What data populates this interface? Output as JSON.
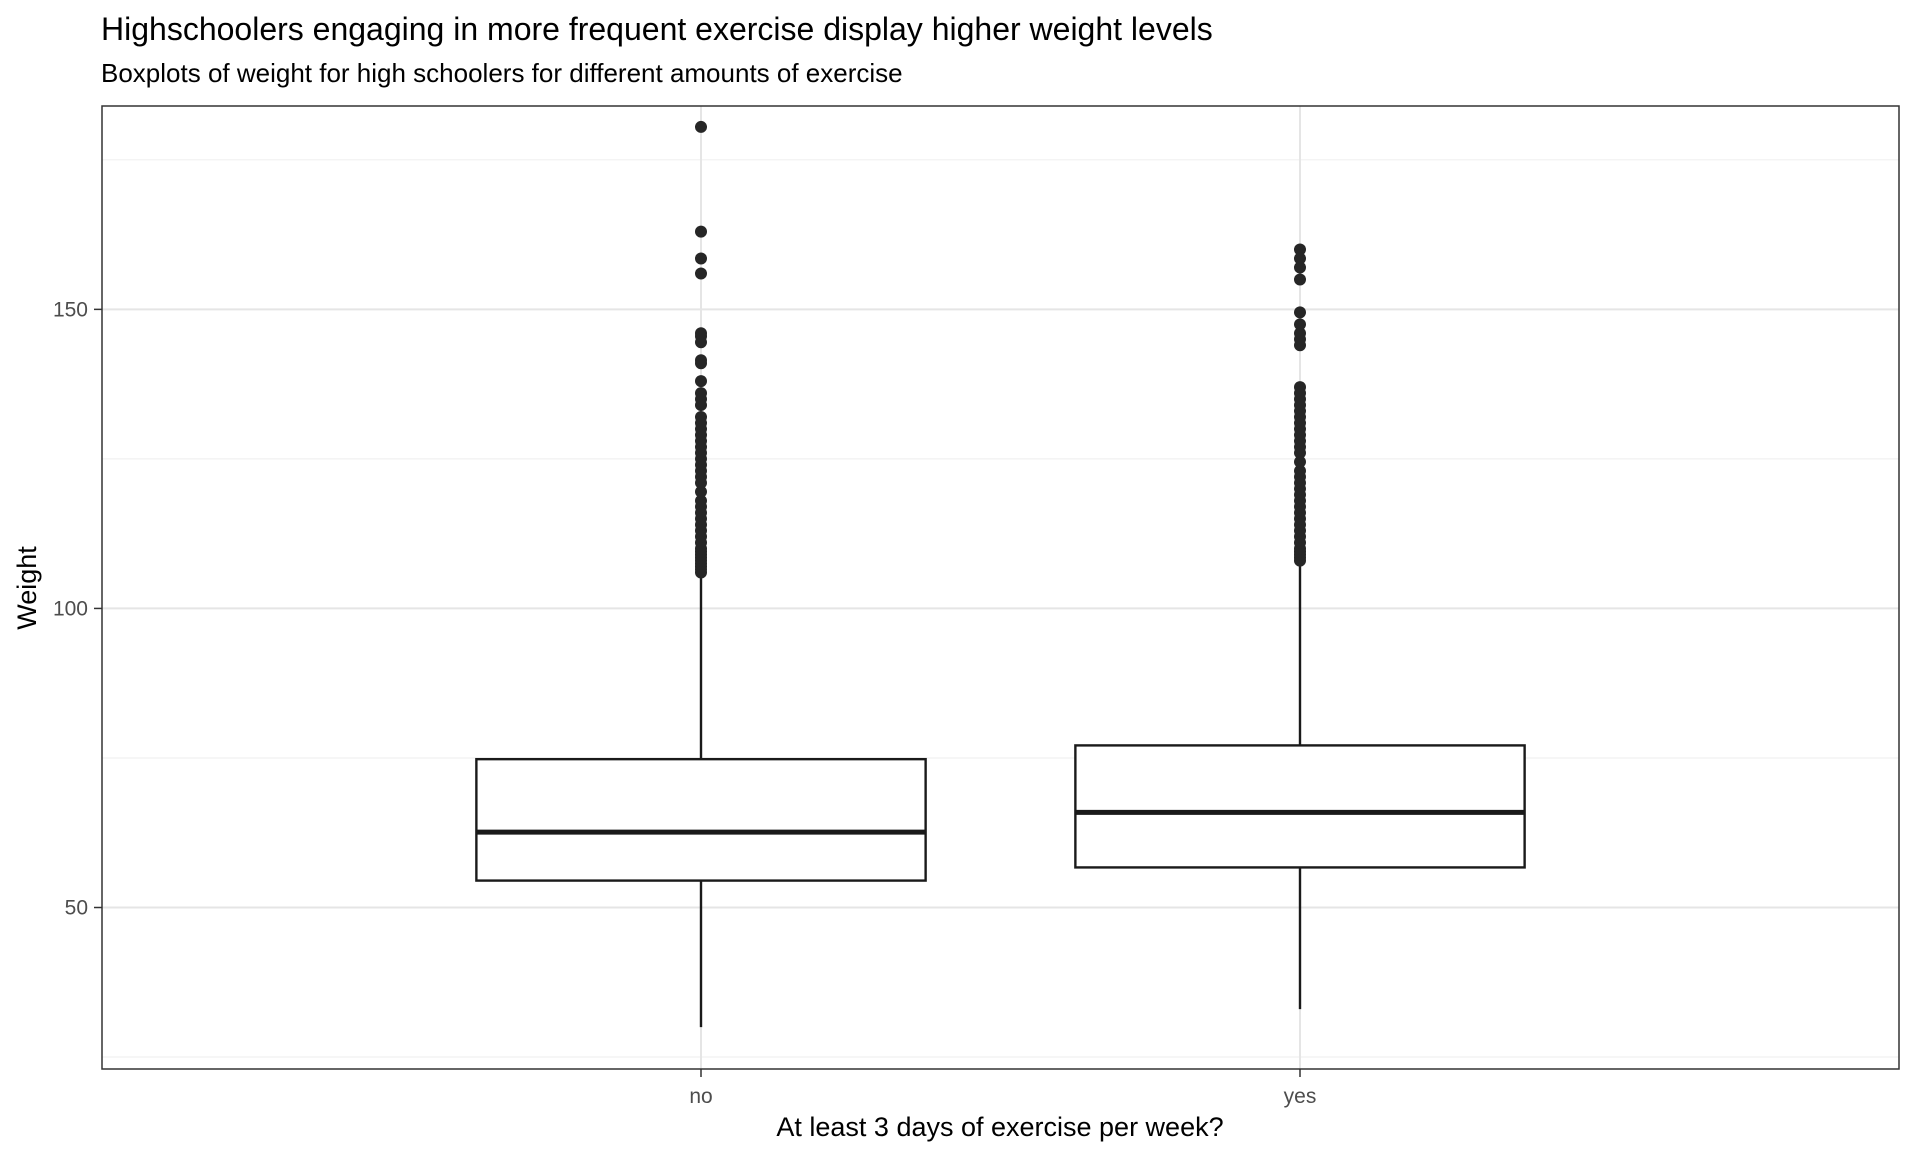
{
  "chart_data": {
    "type": "boxplot",
    "title": "Highschoolers engaging in more frequent exercise display higher weight levels",
    "subtitle": "Boxplots of weight for high schoolers for different amounts of exercise",
    "xlabel": "At least 3 days of exercise per week?",
    "ylabel": "Weight",
    "categories": [
      "no",
      "yes"
    ],
    "ylim": [
      23,
      184
    ],
    "y_ticks": [
      50,
      100,
      150
    ],
    "grid": true,
    "legend": "none",
    "colors": {
      "box_fill": "#ffffff",
      "box_stroke": "#1a1a1a",
      "outlier": "#262626",
      "grid_major": "#e5e5e5",
      "grid_minor": "#f0f0f0",
      "panel_border": "#333333"
    },
    "boxes": [
      {
        "category": "no",
        "min": 30,
        "q1": 54.5,
        "median": 62.6,
        "q3": 74.8,
        "max": 105.5,
        "outliers": [
          106,
          106.5,
          107,
          107.5,
          108,
          108.5,
          109,
          109.5,
          110,
          111,
          112,
          113,
          114,
          115,
          116,
          117,
          118,
          119.5,
          121,
          122,
          123,
          124,
          125,
          126,
          127,
          128,
          129,
          130,
          131,
          132,
          134,
          135,
          136,
          138,
          141,
          141.5,
          144.5,
          145.5,
          146,
          156,
          158.5,
          163,
          180.5
        ]
      },
      {
        "category": "yes",
        "min": 33,
        "q1": 56.7,
        "median": 65.9,
        "q3": 77.1,
        "max": 107.5,
        "outliers": [
          108,
          108.5,
          109,
          109.5,
          110,
          111,
          112,
          113,
          114,
          115,
          116,
          117,
          118,
          119,
          120,
          121,
          122,
          123,
          124.5,
          126,
          127,
          128,
          129,
          130,
          131,
          132,
          133,
          134,
          135,
          136,
          137,
          144,
          145,
          146,
          147.5,
          149.5,
          155,
          157,
          158.5,
          160
        ]
      }
    ]
  }
}
